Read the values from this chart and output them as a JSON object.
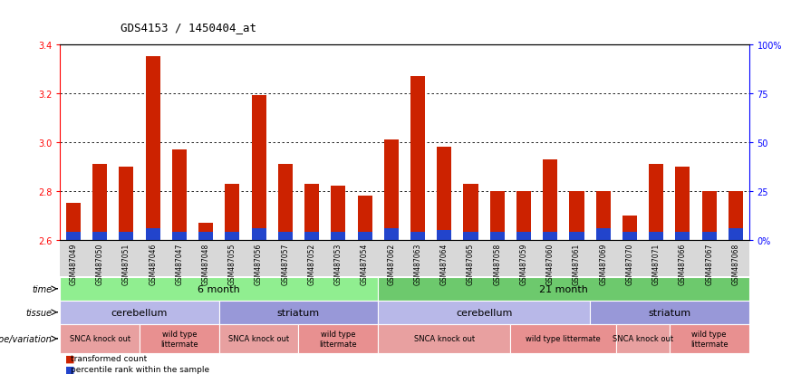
{
  "title": "GDS4153 / 1450404_at",
  "samples": [
    "GSM487049",
    "GSM487050",
    "GSM487051",
    "GSM487046",
    "GSM487047",
    "GSM487048",
    "GSM487055",
    "GSM487056",
    "GSM487057",
    "GSM487052",
    "GSM487053",
    "GSM487054",
    "GSM487062",
    "GSM487063",
    "GSM487064",
    "GSM487065",
    "GSM487058",
    "GSM487059",
    "GSM487060",
    "GSM487061",
    "GSM487069",
    "GSM487070",
    "GSM487071",
    "GSM487066",
    "GSM487067",
    "GSM487068"
  ],
  "red_values": [
    2.75,
    2.91,
    2.9,
    3.35,
    2.97,
    2.67,
    2.83,
    3.19,
    2.91,
    2.83,
    2.82,
    2.78,
    3.01,
    3.27,
    2.98,
    2.83,
    2.8,
    2.8,
    2.93,
    2.8,
    2.8,
    2.7,
    2.91,
    2.9,
    2.8,
    2.8
  ],
  "blue_values": [
    0.04,
    0.04,
    0.04,
    0.06,
    0.04,
    0.04,
    0.04,
    0.06,
    0.04,
    0.04,
    0.04,
    0.04,
    0.06,
    0.04,
    0.05,
    0.04,
    0.04,
    0.04,
    0.04,
    0.04,
    0.06,
    0.04,
    0.04,
    0.04,
    0.04,
    0.06
  ],
  "ylim": [
    2.6,
    3.4
  ],
  "yticks_left": [
    2.6,
    2.8,
    3.0,
    3.2,
    3.4
  ],
  "yticks_right": [
    0,
    25,
    50,
    75,
    100
  ],
  "ytick_labels_right": [
    "0",
    "25",
    "50",
    "75",
    "100%"
  ],
  "time_groups": [
    {
      "label": "6 month",
      "start": 0,
      "end": 12,
      "color": "#90EE90"
    },
    {
      "label": "21 month",
      "start": 12,
      "end": 26,
      "color": "#6DC96D"
    }
  ],
  "tissue_groups": [
    {
      "label": "cerebellum",
      "start": 0,
      "end": 6,
      "color": "#B8B8E8"
    },
    {
      "label": "striatum",
      "start": 6,
      "end": 12,
      "color": "#9898D8"
    },
    {
      "label": "cerebellum",
      "start": 12,
      "end": 20,
      "color": "#B8B8E8"
    },
    {
      "label": "striatum",
      "start": 20,
      "end": 26,
      "color": "#9898D8"
    }
  ],
  "genotype_groups": [
    {
      "label": "SNCA knock out",
      "start": 0,
      "end": 3,
      "color": "#E8A0A0"
    },
    {
      "label": "wild type\nlittermate",
      "start": 3,
      "end": 6,
      "color": "#E89090"
    },
    {
      "label": "SNCA knock out",
      "start": 6,
      "end": 9,
      "color": "#E8A0A0"
    },
    {
      "label": "wild type\nlittermate",
      "start": 9,
      "end": 12,
      "color": "#E89090"
    },
    {
      "label": "SNCA knock out",
      "start": 12,
      "end": 17,
      "color": "#E8A0A0"
    },
    {
      "label": "wild type littermate",
      "start": 17,
      "end": 21,
      "color": "#E89090"
    },
    {
      "label": "SNCA knock out",
      "start": 21,
      "end": 23,
      "color": "#E8A0A0"
    },
    {
      "label": "wild type\nlittermate",
      "start": 23,
      "end": 26,
      "color": "#E89090"
    }
  ],
  "bar_color_red": "#CC2200",
  "bar_color_blue": "#2244CC",
  "bar_width": 0.55,
  "background_color": "#FFFFFF",
  "label_time": "time",
  "label_tissue": "tissue",
  "label_genotype": "genotype/variation"
}
